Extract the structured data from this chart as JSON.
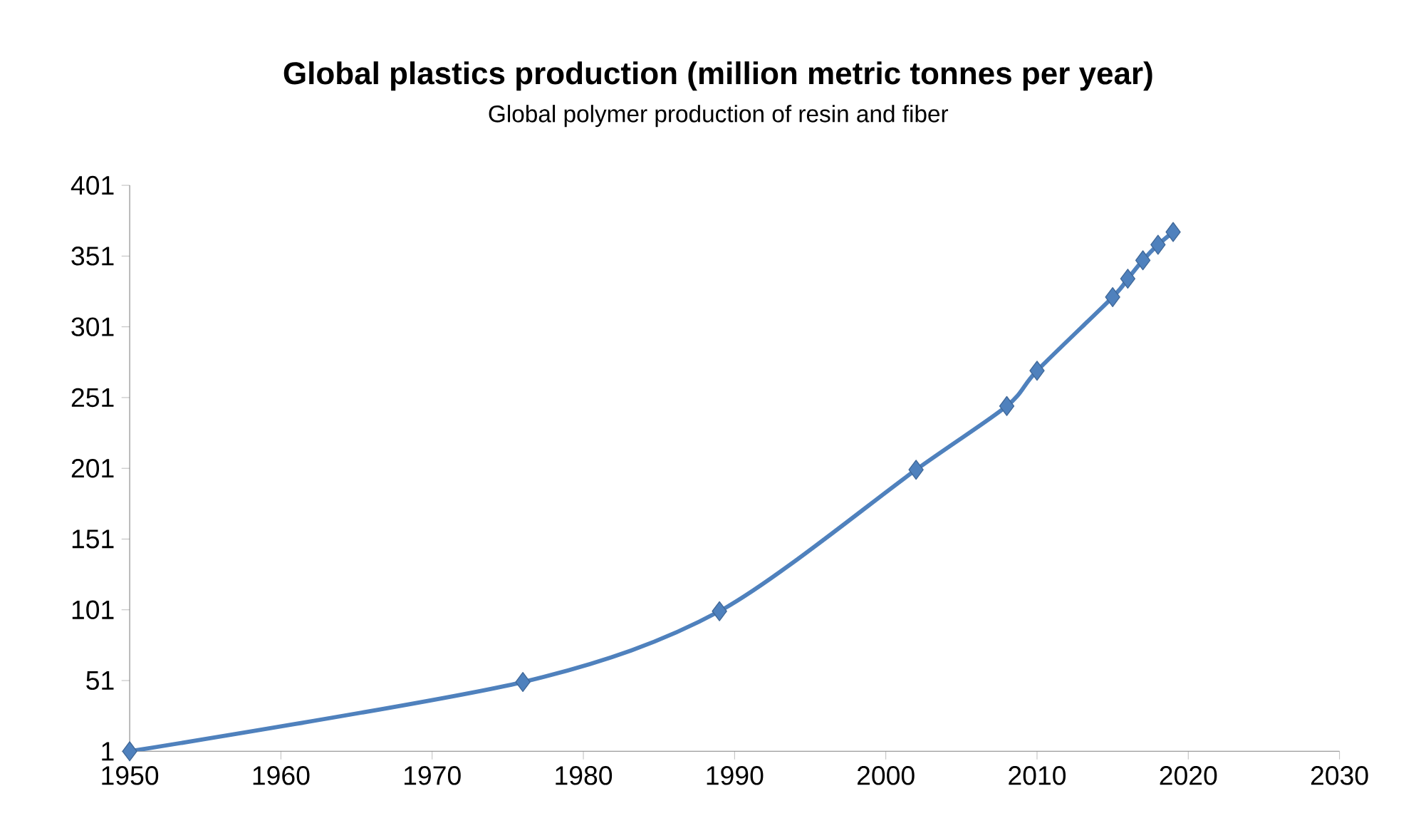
{
  "chart_data": {
    "type": "line",
    "title": "Global plastics production (million metric tonnes per year)",
    "subtitle": "Global polymer production of resin and fiber",
    "x": [
      1950,
      1976,
      1989,
      2002,
      2008,
      2010,
      2015,
      2016,
      2017,
      2018,
      2019
    ],
    "series": [
      {
        "color": "#4f81bd",
        "values": [
          1,
          50,
          100,
          200,
          245,
          270,
          322,
          335,
          348,
          359,
          368
        ]
      }
    ],
    "xlim": [
      1950,
      2030
    ],
    "xticks": [
      1950,
      1960,
      1970,
      1980,
      1990,
      2000,
      2010,
      2020,
      2030
    ],
    "ylim": [
      1,
      401
    ],
    "yticks": [
      1,
      51,
      101,
      151,
      201,
      251,
      301,
      351,
      401
    ],
    "marker": "diamond",
    "line_style": "solid",
    "grid": false
  }
}
